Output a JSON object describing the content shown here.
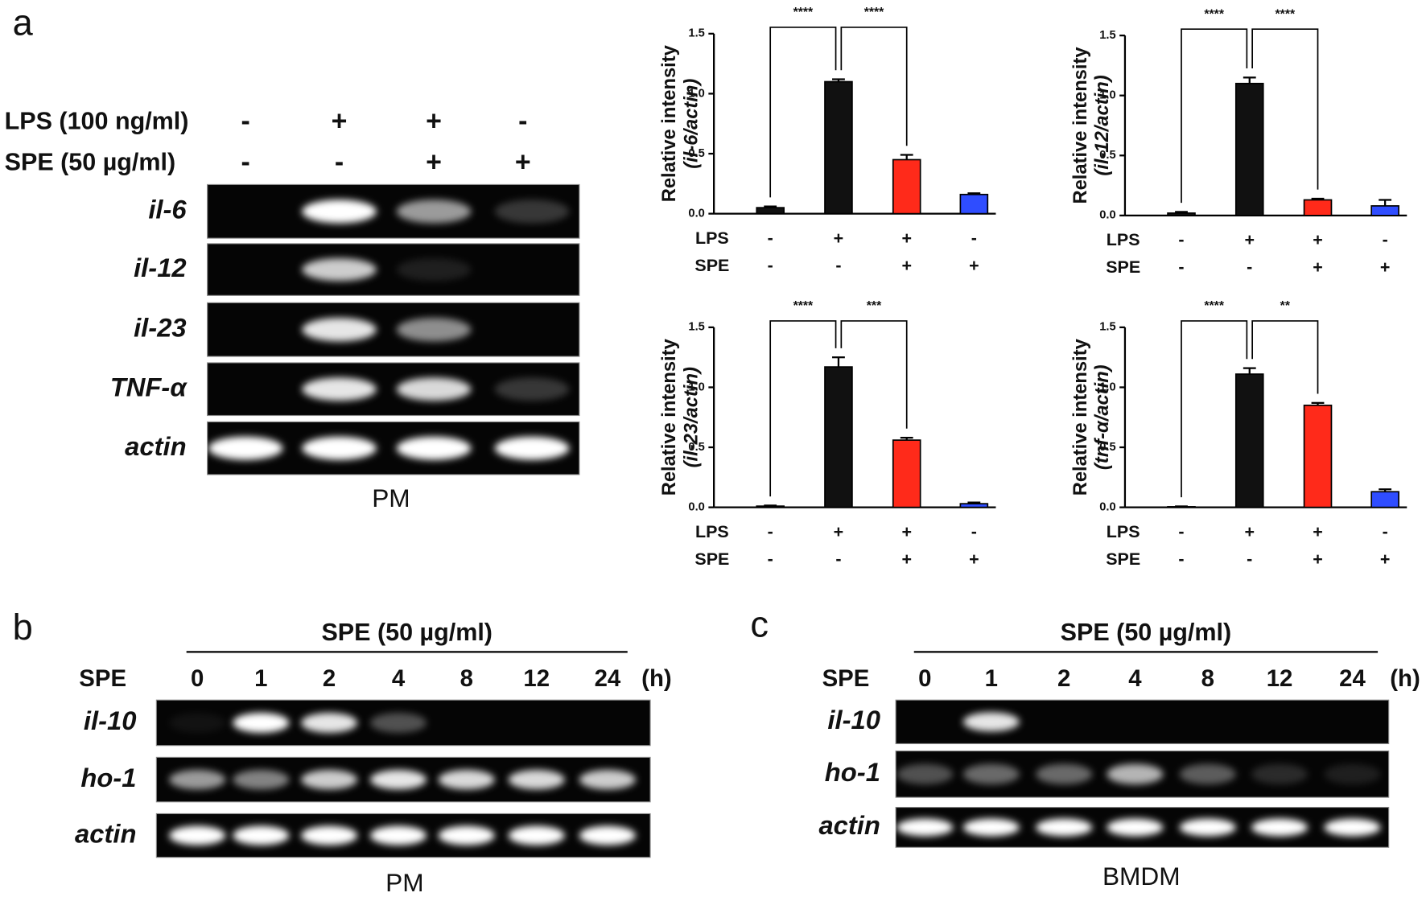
{
  "panel_a": {
    "label": "a",
    "row_labels": [
      "LPS (100 ng/ml)",
      "SPE (50 µg/ml)"
    ],
    "rows": [
      [
        "-",
        "+",
        "+",
        "-"
      ],
      [
        "-",
        "-",
        "+",
        "+"
      ]
    ],
    "genes": [
      "il-6",
      "il-12",
      "il-23",
      "TNF-α",
      "actin"
    ],
    "cell": "PM"
  },
  "panel_b": {
    "label": "b",
    "treatment": "SPE (50 µg/ml)",
    "row_label": "SPE",
    "times": [
      0,
      1,
      2,
      4,
      8,
      12,
      24
    ],
    "unit": "(h)",
    "genes": [
      "il-10",
      "ho-1",
      "actin"
    ],
    "cell": "PM"
  },
  "panel_c": {
    "label": "c",
    "treatment": "SPE (50 µg/ml)",
    "row_label": "SPE",
    "times": [
      0,
      1,
      2,
      4,
      8,
      12,
      24
    ],
    "unit": "(h)",
    "genes": [
      "il-10",
      "ho-1",
      "actin"
    ],
    "cell": "BMDM"
  },
  "chart_data": [
    {
      "type": "bar",
      "ylabel": "Relative intensity",
      "ylabel_gene": "(il-6/actin)",
      "row_labels": [
        "LPS",
        "SPE"
      ],
      "rows": [
        [
          "-",
          "+",
          "+",
          "-"
        ],
        [
          "-",
          "-",
          "+",
          "+"
        ]
      ],
      "values": [
        0.05,
        1.1,
        0.45,
        0.16
      ],
      "errors": [
        0.01,
        0.02,
        0.04,
        0.01
      ],
      "colors": [
        "#111111",
        "#111111",
        "#ff2a1a",
        "#2f4dff"
      ],
      "ylim": [
        0,
        1.5
      ],
      "yticks": [
        {
          "value": 0,
          "label": "0.0"
        },
        {
          "value": 0.5,
          "label": "0.5"
        },
        {
          "value": 1,
          "label": "1.0"
        },
        {
          "value": 1.5,
          "label": "1.5"
        }
      ],
      "significance": [
        "****",
        "****"
      ]
    },
    {
      "type": "bar",
      "ylabel": "Relative intensity",
      "ylabel_gene": "(il-12/actin)",
      "row_labels": [
        "LPS",
        "SPE"
      ],
      "rows": [
        [
          "-",
          "+",
          "+",
          "-"
        ],
        [
          "-",
          "-",
          "+",
          "+"
        ]
      ],
      "values": [
        0.02,
        1.1,
        0.13,
        0.08
      ],
      "errors": [
        0.01,
        0.05,
        0.01,
        0.05
      ],
      "colors": [
        "#111111",
        "#111111",
        "#ff2a1a",
        "#2f4dff"
      ],
      "ylim": [
        0,
        1.5
      ],
      "yticks": [
        {
          "value": 0,
          "label": "0.0"
        },
        {
          "value": 0.5,
          "label": "0.5"
        },
        {
          "value": 1,
          "label": "1.0"
        },
        {
          "value": 1.5,
          "label": "1.5"
        }
      ],
      "significance": [
        "****",
        "****"
      ]
    },
    {
      "type": "bar",
      "ylabel": "Relative intensity",
      "ylabel_gene": "(il-23/actin)",
      "row_labels": [
        "LPS",
        "SPE"
      ],
      "rows": [
        [
          "-",
          "+",
          "+",
          "-"
        ],
        [
          "-",
          "-",
          "+",
          "+"
        ]
      ],
      "values": [
        0.01,
        1.17,
        0.56,
        0.03
      ],
      "errors": [
        0.005,
        0.08,
        0.02,
        0.01
      ],
      "colors": [
        "#111111",
        "#111111",
        "#ff2a1a",
        "#2f4dff"
      ],
      "ylim": [
        0,
        1.5
      ],
      "yticks": [
        {
          "value": 0,
          "label": "0.0"
        },
        {
          "value": 0.5,
          "label": "0.5"
        },
        {
          "value": 1,
          "label": "1.0"
        },
        {
          "value": 1.5,
          "label": "1.5"
        }
      ],
      "significance": [
        "****",
        "***"
      ]
    },
    {
      "type": "bar",
      "ylabel": "Relative intensity",
      "ylabel_gene": "(tnf-α/actin)",
      "row_labels": [
        "LPS",
        "SPE"
      ],
      "rows": [
        [
          "-",
          "+",
          "+",
          "-"
        ],
        [
          "-",
          "-",
          "+",
          "+"
        ]
      ],
      "values": [
        0.005,
        1.11,
        0.85,
        0.13
      ],
      "errors": [
        0.003,
        0.05,
        0.02,
        0.02
      ],
      "colors": [
        "#111111",
        "#111111",
        "#ff2a1a",
        "#2f4dff"
      ],
      "ylim": [
        0,
        1.5
      ],
      "yticks": [
        {
          "value": 0,
          "label": "0.0"
        },
        {
          "value": 0.5,
          "label": "0.5"
        },
        {
          "value": 1,
          "label": "1.0"
        },
        {
          "value": 1.5,
          "label": "1.5"
        }
      ],
      "significance": [
        "****",
        "**"
      ]
    }
  ]
}
